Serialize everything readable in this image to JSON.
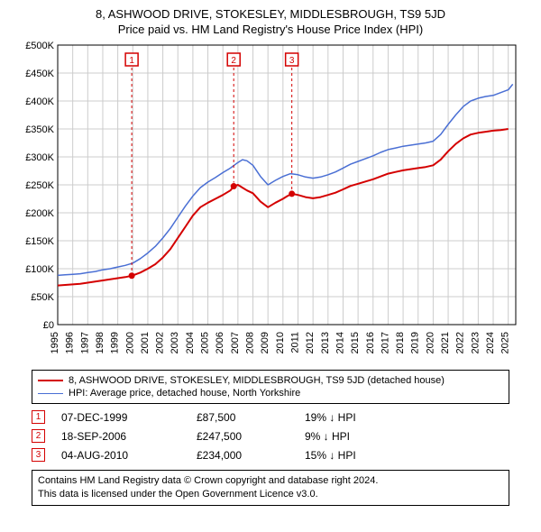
{
  "title_line1": "8, ASHWOOD DRIVE, STOKESLEY, MIDDLESBROUGH, TS9 5JD",
  "title_line2": "Price paid vs. HM Land Registry's House Price Index (HPI)",
  "chart": {
    "type": "line",
    "background_color": "#ffffff",
    "grid_color": "#cccccc",
    "x_years": [
      1995,
      1996,
      1997,
      1998,
      1999,
      2000,
      2001,
      2002,
      2003,
      2004,
      2005,
      2006,
      2007,
      2008,
      2009,
      2010,
      2011,
      2012,
      2013,
      2014,
      2015,
      2016,
      2017,
      2018,
      2019,
      2020,
      2021,
      2022,
      2023,
      2024,
      2025
    ],
    "xlim": [
      1995,
      2025.5
    ],
    "ylim": [
      0,
      500000
    ],
    "ytick_step": 50000,
    "ytick_labels": [
      "£0",
      "£50K",
      "£100K",
      "£150K",
      "£200K",
      "£250K",
      "£300K",
      "£350K",
      "£400K",
      "£450K",
      "£500K"
    ],
    "currency_prefix": "£",
    "series": [
      {
        "name": "property",
        "label": "8, ASHWOOD DRIVE, STOKESLEY, MIDDLESBROUGH, TS9 5JD (detached house)",
        "color": "#d40000",
        "line_width": 2,
        "points": [
          [
            1995.0,
            70000
          ],
          [
            1995.5,
            71000
          ],
          [
            1996.0,
            72000
          ],
          [
            1996.5,
            73000
          ],
          [
            1997.0,
            75000
          ],
          [
            1997.5,
            77000
          ],
          [
            1998.0,
            79000
          ],
          [
            1998.5,
            81000
          ],
          [
            1999.0,
            83000
          ],
          [
            1999.5,
            85000
          ],
          [
            1999.93,
            87500
          ],
          [
            2000.0,
            88000
          ],
          [
            2000.5,
            93000
          ],
          [
            2001.0,
            100000
          ],
          [
            2001.5,
            108000
          ],
          [
            2002.0,
            120000
          ],
          [
            2002.5,
            135000
          ],
          [
            2003.0,
            155000
          ],
          [
            2003.5,
            175000
          ],
          [
            2004.0,
            195000
          ],
          [
            2004.5,
            210000
          ],
          [
            2005.0,
            218000
          ],
          [
            2005.5,
            225000
          ],
          [
            2006.0,
            232000
          ],
          [
            2006.5,
            240000
          ],
          [
            2006.72,
            247500
          ],
          [
            2007.0,
            250000
          ],
          [
            2007.3,
            245000
          ],
          [
            2007.6,
            240000
          ],
          [
            2008.0,
            235000
          ],
          [
            2008.5,
            220000
          ],
          [
            2009.0,
            210000
          ],
          [
            2009.5,
            218000
          ],
          [
            2010.0,
            225000
          ],
          [
            2010.3,
            230000
          ],
          [
            2010.6,
            234000
          ],
          [
            2011.0,
            232000
          ],
          [
            2011.5,
            228000
          ],
          [
            2012.0,
            226000
          ],
          [
            2012.5,
            228000
          ],
          [
            2013.0,
            232000
          ],
          [
            2013.5,
            236000
          ],
          [
            2014.0,
            242000
          ],
          [
            2014.5,
            248000
          ],
          [
            2015.0,
            252000
          ],
          [
            2015.5,
            256000
          ],
          [
            2016.0,
            260000
          ],
          [
            2016.5,
            265000
          ],
          [
            2017.0,
            270000
          ],
          [
            2017.5,
            273000
          ],
          [
            2018.0,
            276000
          ],
          [
            2018.5,
            278000
          ],
          [
            2019.0,
            280000
          ],
          [
            2019.5,
            282000
          ],
          [
            2020.0,
            285000
          ],
          [
            2020.5,
            295000
          ],
          [
            2021.0,
            310000
          ],
          [
            2021.5,
            323000
          ],
          [
            2022.0,
            333000
          ],
          [
            2022.5,
            340000
          ],
          [
            2023.0,
            343000
          ],
          [
            2023.5,
            345000
          ],
          [
            2024.0,
            347000
          ],
          [
            2024.5,
            348000
          ],
          [
            2025.0,
            350000
          ]
        ]
      },
      {
        "name": "hpi",
        "label": "HPI: Average price, detached house, North Yorkshire",
        "color": "#4a6fd4",
        "line_width": 1.5,
        "points": [
          [
            1995.0,
            88000
          ],
          [
            1995.5,
            89000
          ],
          [
            1996.0,
            90000
          ],
          [
            1996.5,
            91000
          ],
          [
            1997.0,
            93000
          ],
          [
            1997.5,
            95000
          ],
          [
            1998.0,
            98000
          ],
          [
            1998.5,
            100000
          ],
          [
            1999.0,
            103000
          ],
          [
            1999.5,
            106000
          ],
          [
            2000.0,
            110000
          ],
          [
            2000.5,
            118000
          ],
          [
            2001.0,
            128000
          ],
          [
            2001.5,
            140000
          ],
          [
            2002.0,
            155000
          ],
          [
            2002.5,
            172000
          ],
          [
            2003.0,
            192000
          ],
          [
            2003.5,
            212000
          ],
          [
            2004.0,
            230000
          ],
          [
            2004.5,
            245000
          ],
          [
            2005.0,
            255000
          ],
          [
            2005.5,
            263000
          ],
          [
            2006.0,
            272000
          ],
          [
            2006.5,
            280000
          ],
          [
            2007.0,
            290000
          ],
          [
            2007.3,
            295000
          ],
          [
            2007.6,
            293000
          ],
          [
            2008.0,
            285000
          ],
          [
            2008.5,
            265000
          ],
          [
            2009.0,
            250000
          ],
          [
            2009.5,
            258000
          ],
          [
            2010.0,
            265000
          ],
          [
            2010.5,
            270000
          ],
          [
            2011.0,
            268000
          ],
          [
            2011.5,
            264000
          ],
          [
            2012.0,
            262000
          ],
          [
            2012.5,
            264000
          ],
          [
            2013.0,
            268000
          ],
          [
            2013.5,
            273000
          ],
          [
            2014.0,
            280000
          ],
          [
            2014.5,
            287000
          ],
          [
            2015.0,
            292000
          ],
          [
            2015.5,
            297000
          ],
          [
            2016.0,
            302000
          ],
          [
            2016.5,
            308000
          ],
          [
            2017.0,
            313000
          ],
          [
            2017.5,
            316000
          ],
          [
            2018.0,
            319000
          ],
          [
            2018.5,
            321000
          ],
          [
            2019.0,
            323000
          ],
          [
            2019.5,
            325000
          ],
          [
            2020.0,
            328000
          ],
          [
            2020.5,
            340000
          ],
          [
            2021.0,
            358000
          ],
          [
            2021.5,
            375000
          ],
          [
            2022.0,
            390000
          ],
          [
            2022.5,
            400000
          ],
          [
            2023.0,
            405000
          ],
          [
            2023.5,
            408000
          ],
          [
            2024.0,
            410000
          ],
          [
            2024.5,
            415000
          ],
          [
            2025.0,
            420000
          ],
          [
            2025.3,
            430000
          ]
        ]
      }
    ],
    "markers": [
      {
        "n": "1",
        "year": 1999.93,
        "value": 87500,
        "color": "#d40000"
      },
      {
        "n": "2",
        "year": 2006.72,
        "value": 247500,
        "color": "#d40000"
      },
      {
        "n": "3",
        "year": 2010.59,
        "value": 234000,
        "color": "#d40000"
      }
    ]
  },
  "legend": [
    {
      "color": "#d40000",
      "label": "8, ASHWOOD DRIVE, STOKESLEY, MIDDLESBROUGH, TS9 5JD (detached house)",
      "width": 2
    },
    {
      "color": "#4a6fd4",
      "label": "HPI: Average price, detached house, North Yorkshire",
      "width": 1.5
    }
  ],
  "transactions": [
    {
      "n": "1",
      "date": "07-DEC-1999",
      "price": "£87,500",
      "diff": "19% ↓ HPI",
      "color": "#d40000"
    },
    {
      "n": "2",
      "date": "18-SEP-2006",
      "price": "£247,500",
      "diff": "9% ↓ HPI",
      "color": "#d40000"
    },
    {
      "n": "3",
      "date": "04-AUG-2010",
      "price": "£234,000",
      "diff": "15% ↓ HPI",
      "color": "#d40000"
    }
  ],
  "footer": {
    "line1": "Contains HM Land Registry data © Crown copyright and database right 2024.",
    "line2": "This data is licensed under the Open Government Licence v3.0."
  }
}
